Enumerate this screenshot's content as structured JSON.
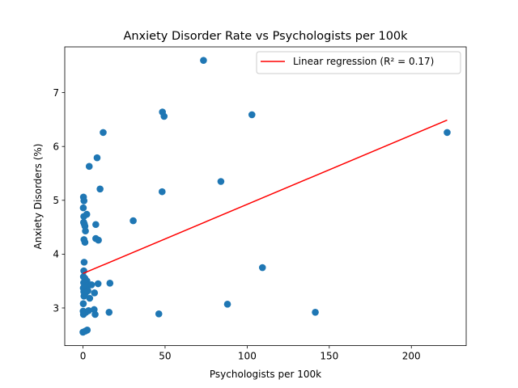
{
  "chart_data": {
    "type": "scatter",
    "title": "Anxiety Disorder Rate vs Psychologists per 100k",
    "xlabel": "Psychologists per 100k",
    "ylabel": "Anxiety Disorders (%)",
    "xlim": [
      -11.1,
      233.4
    ],
    "ylim": [
      2.3,
      7.85
    ],
    "xticks": [
      0,
      50,
      100,
      150,
      200
    ],
    "yticks": [
      3,
      4,
      5,
      6,
      7
    ],
    "grid": false,
    "legend_position": "top-right",
    "colors": {
      "points": "#1f77b4",
      "regression": "#ff0000"
    },
    "series": [
      {
        "kind": "points",
        "points": [
          [
            73.4,
            7.6
          ],
          [
            48.4,
            6.64
          ],
          [
            49.4,
            6.56
          ],
          [
            102.9,
            6.59
          ],
          [
            12.3,
            6.26
          ],
          [
            221.8,
            6.26
          ],
          [
            8.6,
            5.79
          ],
          [
            3.8,
            5.63
          ],
          [
            84.0,
            5.35
          ],
          [
            10.4,
            5.21
          ],
          [
            48.2,
            5.16
          ],
          [
            0.3,
            5.06
          ],
          [
            0.6,
            4.99
          ],
          [
            0.2,
            4.86
          ],
          [
            0.5,
            4.7
          ],
          [
            2.3,
            4.74
          ],
          [
            0.4,
            4.59
          ],
          [
            0.8,
            4.56
          ],
          [
            1.2,
            4.52
          ],
          [
            7.8,
            4.55
          ],
          [
            30.6,
            4.62
          ],
          [
            1.5,
            4.43
          ],
          [
            0.6,
            4.27
          ],
          [
            1.2,
            4.22
          ],
          [
            7.8,
            4.29
          ],
          [
            9.4,
            4.26
          ],
          [
            0.7,
            3.85
          ],
          [
            109.3,
            3.75
          ],
          [
            0.5,
            3.69
          ],
          [
            0.3,
            3.58
          ],
          [
            1.2,
            3.55
          ],
          [
            2.4,
            3.5
          ],
          [
            0.4,
            3.47
          ],
          [
            3.1,
            3.42
          ],
          [
            5.2,
            3.43
          ],
          [
            9.2,
            3.45
          ],
          [
            16.4,
            3.46
          ],
          [
            0.2,
            3.37
          ],
          [
            0.5,
            3.3
          ],
          [
            1.6,
            3.28
          ],
          [
            3.0,
            3.32
          ],
          [
            7.0,
            3.28
          ],
          [
            0.6,
            3.22
          ],
          [
            4.1,
            3.18
          ],
          [
            0.2,
            3.08
          ],
          [
            88.0,
            3.07
          ],
          [
            0.1,
            2.94
          ],
          [
            0.3,
            2.88
          ],
          [
            1.8,
            2.92
          ],
          [
            3.4,
            2.95
          ],
          [
            6.8,
            2.97
          ],
          [
            7.4,
            2.88
          ],
          [
            15.9,
            2.92
          ],
          [
            46.2,
            2.89
          ],
          [
            141.5,
            2.92
          ],
          [
            0.0,
            2.55
          ],
          [
            1.4,
            2.57
          ],
          [
            2.6,
            2.59
          ]
        ]
      },
      {
        "kind": "line",
        "name": "Linear regression (R² = 0.17)",
        "points": [
          [
            0.0,
            3.64
          ],
          [
            221.8,
            6.49
          ]
        ]
      }
    ]
  }
}
